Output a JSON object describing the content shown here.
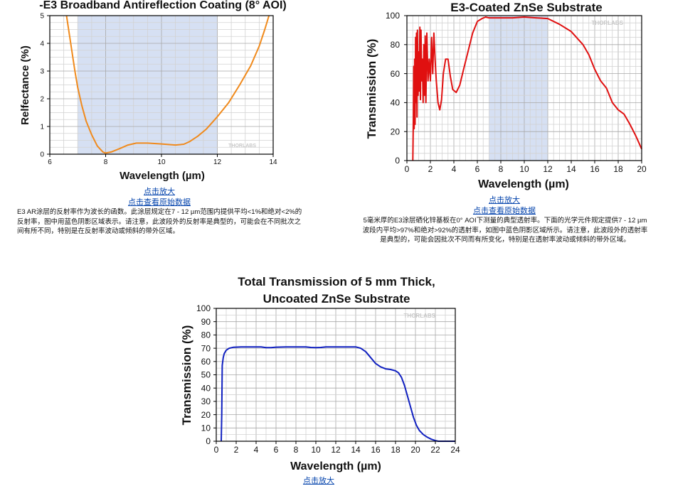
{
  "chart_data": [
    {
      "type": "line",
      "title": "-E3 Broadband Antireflection Coating (8° AOI)",
      "xlabel": "Wavelength (µm)",
      "ylabel": "Relfectance (%)",
      "xlim": [
        6,
        14
      ],
      "ylim": [
        0,
        5
      ],
      "xticks": [
        "6",
        "8",
        "10",
        "12",
        "14"
      ],
      "yticks": [
        "0",
        "1",
        "2",
        "3",
        "4",
        "5"
      ],
      "grid": true,
      "shaded_region": [
        7,
        12
      ],
      "watermark": "THORLABS",
      "series": [
        {
          "color": "#f08a1c",
          "x": [
            6.6,
            6.75,
            6.9,
            7.0,
            7.15,
            7.3,
            7.5,
            7.7,
            7.9,
            8.0,
            8.2,
            8.5,
            8.8,
            9.1,
            9.5,
            10.0,
            10.5,
            10.8,
            11.0,
            11.3,
            11.6,
            12.0,
            12.4,
            12.8,
            13.2,
            13.5,
            13.7,
            13.85
          ],
          "y": [
            5.0,
            4.0,
            3.0,
            2.4,
            1.75,
            1.2,
            0.7,
            0.3,
            0.08,
            0.04,
            0.08,
            0.2,
            0.33,
            0.4,
            0.4,
            0.37,
            0.33,
            0.36,
            0.45,
            0.65,
            0.9,
            1.35,
            1.85,
            2.5,
            3.2,
            3.9,
            4.5,
            5.0
          ]
        }
      ],
      "links": [
        "点击放大",
        "点击查看原始数据"
      ],
      "caption": "E3 AR涂层的反射率作为波长的函数。此涂层规定在7 - 12 µm范围内提供平均<1%和绝对<2%的反射率，图中用蓝色阴影区域表示。请注意，此波段外的反射率是典型的，可能会在不同批次之间有所不同，特别是在反射率波动或倾斜的带外区域。"
    },
    {
      "type": "line",
      "title": "E3-Coated ZnSe Substrate",
      "xlabel": "Wavelength (µm)",
      "ylabel": "Transmission (%)",
      "xlim": [
        0,
        20
      ],
      "ylim": [
        0,
        100
      ],
      "xticks": [
        "0",
        "2",
        "4",
        "6",
        "8",
        "10",
        "12",
        "14",
        "16",
        "18",
        "20"
      ],
      "yticks": [
        "0",
        "20",
        "40",
        "60",
        "80",
        "100"
      ],
      "grid": true,
      "shaded_region": [
        7,
        12
      ],
      "watermark": "THORLABS",
      "series": [
        {
          "color": "#e01010",
          "x": [
            0.5,
            0.55,
            0.58,
            0.62,
            0.66,
            0.7,
            0.74,
            0.78,
            0.82,
            0.86,
            0.9,
            0.95,
            1.0,
            1.05,
            1.1,
            1.15,
            1.2,
            1.26,
            1.32,
            1.38,
            1.44,
            1.5,
            1.56,
            1.62,
            1.7,
            1.8,
            1.9,
            2.0,
            2.1,
            2.2,
            2.3,
            2.4,
            2.5,
            2.65,
            2.8,
            2.95,
            3.1,
            3.3,
            3.5,
            3.7,
            3.9,
            4.2,
            4.5,
            4.8,
            5.2,
            5.6,
            6.0,
            6.4,
            6.7,
            7.0,
            7.5,
            8.0,
            9.0,
            10.0,
            11.0,
            12.0,
            13.0,
            14.0,
            15.0,
            15.5,
            16.0,
            16.5,
            17.0,
            17.5,
            18.0,
            18.5,
            19.0,
            19.5,
            20.0
          ],
          "y": [
            0,
            30,
            65,
            22,
            70,
            25,
            85,
            40,
            88,
            30,
            90,
            45,
            75,
            48,
            92,
            42,
            90,
            55,
            70,
            40,
            80,
            45,
            86,
            40,
            88,
            55,
            70,
            55,
            85,
            60,
            88,
            70,
            55,
            40,
            35,
            42,
            60,
            70,
            70,
            58,
            49,
            47,
            52,
            62,
            75,
            88,
            96,
            98,
            99,
            98.5,
            98.5,
            98.5,
            98.5,
            99,
            98.5,
            98,
            94,
            89,
            80,
            73,
            63,
            55,
            50,
            40,
            35,
            32,
            25,
            17,
            8
          ]
        }
      ],
      "links": [
        "点击放大",
        "点击查看原始数据"
      ],
      "caption": "5毫米厚的E3涂层硒化锌基板在0° AOI下测量的典型透射率。下面的光学元件规定提供7 - 12 µm波段内平均>97%和绝对>92%的透射率，如图中蓝色阴影区域所示。请注意，此波段外的透射率是典型的，可能会因批次不同而有所变化，特别是在透射率波动或倾斜的带外区域。"
    },
    {
      "type": "line",
      "title": "Total Transmission of 5 mm Thick, Uncoated ZnSe Substrate",
      "title_lines": [
        "Total Transmission of 5 mm Thick,",
        "Uncoated ZnSe Substrate"
      ],
      "xlabel": "Wavelength (µm)",
      "ylabel": "Transmission (%)",
      "xlim": [
        0,
        24
      ],
      "ylim": [
        0,
        100
      ],
      "xticks": [
        "0",
        "2",
        "4",
        "6",
        "8",
        "10",
        "12",
        "14",
        "16",
        "18",
        "20",
        "22",
        "24"
      ],
      "yticks": [
        "0",
        "10",
        "20",
        "30",
        "40",
        "50",
        "60",
        "70",
        "80",
        "90",
        "100"
      ],
      "grid": true,
      "watermark": "THORLABS",
      "series": [
        {
          "color": "#1020c0",
          "x": [
            0.5,
            0.55,
            0.6,
            0.7,
            0.8,
            1.0,
            1.3,
            1.7,
            2.5,
            3.5,
            4.5,
            5.0,
            5.5,
            6.0,
            7.0,
            8.0,
            9.0,
            9.5,
            10.0,
            10.5,
            11.0,
            12.0,
            13.0,
            14.0,
            14.5,
            15.0,
            15.5,
            16.0,
            16.5,
            17.0,
            17.5,
            18.0,
            18.3,
            18.6,
            18.9,
            19.2,
            19.5,
            19.8,
            20.1,
            20.4,
            20.8,
            21.2,
            21.6,
            22.0,
            22.3,
            24.0
          ],
          "y": [
            0,
            20,
            57,
            63,
            66,
            68.5,
            70,
            70.7,
            71,
            71,
            71,
            70.5,
            70.5,
            70.8,
            71,
            71,
            71,
            70.6,
            70.5,
            70.6,
            71,
            71,
            71,
            71,
            70,
            67.5,
            63,
            58.5,
            56,
            54.5,
            54,
            53,
            51.5,
            48,
            42,
            34,
            26,
            18,
            12,
            8,
            5,
            3,
            1.5,
            0.5,
            0,
            0
          ]
        }
      ],
      "links": [
        "点击放大"
      ]
    }
  ]
}
